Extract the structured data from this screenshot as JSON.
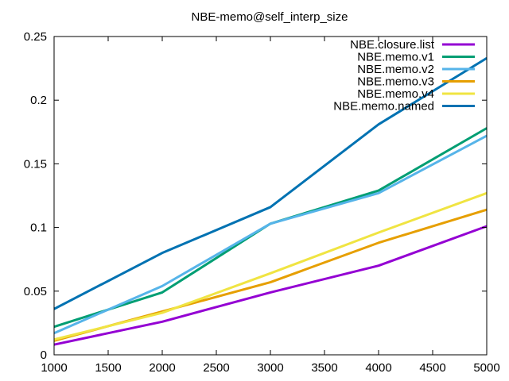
{
  "chart_data": {
    "type": "line",
    "title": "NBE-memo@self_interp_size",
    "xlabel": "",
    "ylabel": "",
    "xlim": [
      1000,
      5000
    ],
    "ylim": [
      0,
      0.25
    ],
    "x": [
      1000,
      2000,
      3000,
      4000,
      5000
    ],
    "xticks": [
      1000,
      1500,
      2000,
      2500,
      3000,
      3500,
      4000,
      4500,
      5000
    ],
    "xtick_labels": [
      "1000",
      "1500",
      "2000",
      "2500",
      "3000",
      "3500",
      "4000",
      "4500",
      "5000"
    ],
    "yticks": [
      0,
      0.05,
      0.1,
      0.15,
      0.2,
      0.25
    ],
    "ytick_labels": [
      "0",
      "0.05",
      "0.1",
      "0.15",
      "0.2",
      "0.25"
    ],
    "grid": false,
    "legend_position": "top-right",
    "series": [
      {
        "name": "NBE.closure.list",
        "color": "#9400d3",
        "values": [
          0.008,
          0.026,
          0.049,
          0.07,
          0.101
        ]
      },
      {
        "name": "NBE.memo.v1",
        "color": "#009e73",
        "values": [
          0.022,
          0.049,
          0.103,
          0.129,
          0.178
        ]
      },
      {
        "name": "NBE.memo.v2",
        "color": "#56b4e9",
        "values": [
          0.017,
          0.054,
          0.103,
          0.127,
          0.172
        ]
      },
      {
        "name": "NBE.memo.v3",
        "color": "#e69f00",
        "values": [
          0.011,
          0.034,
          0.057,
          0.088,
          0.114
        ]
      },
      {
        "name": "NBE.memo.v4",
        "color": "#f0e442",
        "values": [
          0.012,
          0.033,
          0.064,
          0.096,
          0.127
        ]
      },
      {
        "name": "NBE.memo.named",
        "color": "#0072b2",
        "values": [
          0.036,
          0.08,
          0.116,
          0.181,
          0.233
        ]
      }
    ]
  }
}
